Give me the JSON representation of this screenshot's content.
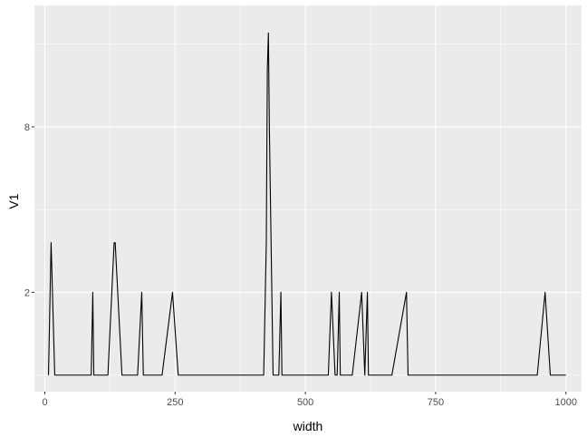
{
  "chart_data": {
    "type": "line",
    "title": "",
    "xlabel": "width",
    "ylabel": "V1",
    "xlim": [
      -20,
      1030
    ],
    "ylim": [
      -1.6,
      12.4
    ],
    "x_ticks": [
      0,
      250,
      500,
      750,
      1000
    ],
    "x_tick_labels": [
      "0",
      "250",
      "500",
      "750",
      "1000"
    ],
    "y_ticks": [
      2,
      8
    ],
    "y_tick_labels": [
      "2",
      "8"
    ],
    "grid": true,
    "legend": "none",
    "colors": {
      "panel_background": "#ebebeb",
      "grid": "#ffffff",
      "line": "#000000",
      "tick_label": "#4d4d4d",
      "axis_title": "#000000",
      "xlabel": "#3a1f52"
    },
    "series": [
      {
        "x": [
          7,
          12,
          19,
          89,
          92,
          94,
          121,
          133,
          135,
          148,
          178,
          186,
          189,
          197,
          225,
          245,
          256,
          420,
          425,
          427,
          429,
          431,
          438,
          449,
          453,
          455,
          544,
          550,
          557,
          561,
          565,
          567,
          590,
          608,
          614,
          619,
          621,
          624,
          666,
          694,
          697,
          945,
          960,
          970,
          1000
        ],
        "y": [
          -1,
          3.8,
          -1,
          -1,
          2,
          -1,
          -1,
          3.8,
          3.8,
          -1,
          -1,
          2,
          -1,
          -1,
          -1,
          2,
          -1,
          -1,
          3.8,
          10.1,
          11.4,
          7.8,
          -1,
          -1,
          2,
          -1,
          -1,
          2,
          -1,
          -1,
          2,
          -1,
          -1,
          2,
          -1,
          2,
          -1,
          -1,
          -1,
          2,
          -1,
          -1,
          2,
          -1,
          -1
        ]
      }
    ]
  }
}
